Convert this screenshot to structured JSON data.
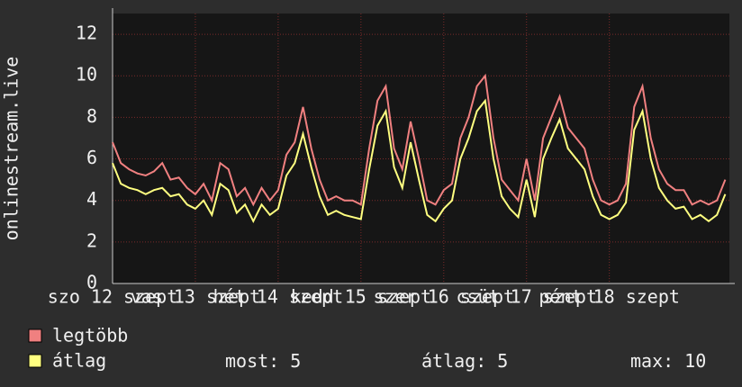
{
  "chart_data": {
    "type": "line",
    "ylabel": "onlinestream.live",
    "x": [
      12.0,
      12.1,
      12.2,
      12.3,
      12.4,
      12.5,
      12.6,
      12.7,
      12.8,
      12.9,
      13.0,
      13.1,
      13.2,
      13.3,
      13.4,
      13.5,
      13.6,
      13.7,
      13.8,
      13.9,
      14.0,
      14.1,
      14.2,
      14.3,
      14.4,
      14.5,
      14.6,
      14.7,
      14.8,
      14.9,
      15.0,
      15.1,
      15.2,
      15.3,
      15.4,
      15.5,
      15.6,
      15.7,
      15.8,
      15.9,
      16.0,
      16.1,
      16.2,
      16.3,
      16.4,
      16.5,
      16.6,
      16.7,
      16.8,
      16.9,
      17.0,
      17.1,
      17.2,
      17.3,
      17.4,
      17.5,
      17.6,
      17.7,
      17.8,
      17.9,
      18.0,
      18.1,
      18.2,
      18.3,
      18.4,
      18.5,
      18.6,
      18.7,
      18.8,
      18.9,
      19.0,
      19.1,
      19.2,
      19.3,
      19.4
    ],
    "series": [
      {
        "name": "legtöbb",
        "color": "#f08080",
        "values": [
          6.8,
          5.8,
          5.5,
          5.3,
          5.2,
          5.4,
          5.8,
          5.0,
          5.1,
          4.6,
          4.3,
          4.8,
          4.0,
          5.8,
          5.5,
          4.2,
          4.6,
          3.8,
          4.6,
          4.0,
          4.5,
          6.2,
          6.8,
          8.5,
          6.5,
          5.0,
          4.0,
          4.2,
          4.0,
          4.0,
          3.8,
          6.5,
          8.8,
          9.5,
          6.5,
          5.5,
          7.8,
          6.0,
          4.0,
          3.8,
          4.5,
          4.8,
          7.0,
          8.0,
          9.5,
          10.0,
          7.0,
          5.0,
          4.5,
          4.0,
          6.0,
          4.0,
          7.0,
          8.0,
          9.0,
          7.5,
          7.0,
          6.5,
          5.0,
          4.0,
          3.8,
          4.0,
          4.8,
          8.5,
          9.5,
          7.0,
          5.5,
          4.8,
          4.5,
          4.5,
          3.8,
          4.0,
          3.8,
          4.0,
          5.0
        ]
      },
      {
        "name": "átlag",
        "color": "#ffff80",
        "values": [
          5.8,
          4.8,
          4.6,
          4.5,
          4.3,
          4.5,
          4.6,
          4.2,
          4.3,
          3.8,
          3.6,
          4.0,
          3.3,
          4.8,
          4.5,
          3.4,
          3.8,
          3.0,
          3.8,
          3.3,
          3.6,
          5.2,
          5.8,
          7.2,
          5.6,
          4.2,
          3.3,
          3.5,
          3.3,
          3.2,
          3.1,
          5.5,
          7.6,
          8.3,
          5.6,
          4.6,
          6.8,
          5.0,
          3.3,
          3.0,
          3.6,
          4.0,
          6.0,
          7.0,
          8.3,
          8.8,
          6.0,
          4.2,
          3.6,
          3.2,
          5.0,
          3.2,
          6.0,
          7.0,
          7.9,
          6.5,
          6.0,
          5.5,
          4.2,
          3.3,
          3.1,
          3.3,
          3.9,
          7.4,
          8.3,
          6.0,
          4.6,
          4.0,
          3.6,
          3.7,
          3.1,
          3.3,
          3.0,
          3.3,
          4.3
        ]
      }
    ],
    "xlim": [
      12,
      19.45
    ],
    "xticks": [
      {
        "value": 12,
        "label": "szo 12 szept"
      },
      {
        "value": 13,
        "label": "vas 13 szept"
      },
      {
        "value": 14,
        "label": "hét 14 szept"
      },
      {
        "value": 15,
        "label": "kedd 15 szept"
      },
      {
        "value": 16,
        "label": "szer 16 szept"
      },
      {
        "value": 17,
        "label": "csüt 17 szept"
      },
      {
        "value": 18,
        "label": "pént 18 szept"
      }
    ],
    "ylim": [
      0,
      13
    ],
    "yticks": [
      0,
      2,
      4,
      6,
      8,
      10,
      12
    ],
    "grid": true,
    "stats": [
      {
        "label": "most:",
        "value": 5
      },
      {
        "label": "átlag:",
        "value": 5
      },
      {
        "label": "max:",
        "value": 10
      }
    ]
  }
}
